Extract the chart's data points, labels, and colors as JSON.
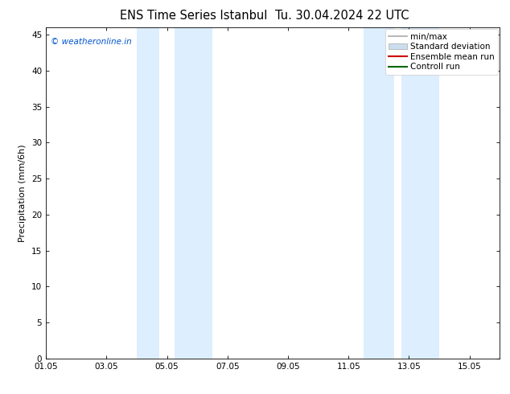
{
  "title": "ENS Time Series Istanbul",
  "title2": "Tu. 30.04.2024 22 UTC",
  "ylabel": "Precipitation (mm/6h)",
  "xtick_labels": [
    "01.05",
    "03.05",
    "05.05",
    "07.05",
    "09.05",
    "11.05",
    "13.05",
    "15.05"
  ],
  "xtick_positions": [
    0,
    2,
    4,
    6,
    8,
    10,
    12,
    14
  ],
  "ylim": [
    0,
    46
  ],
  "ytick_positions": [
    0,
    5,
    10,
    15,
    20,
    25,
    30,
    35,
    40,
    45
  ],
  "ytick_labels": [
    "0",
    "5",
    "10",
    "15",
    "20",
    "25",
    "30",
    "35",
    "40",
    "45"
  ],
  "background_color": "#ffffff",
  "plot_bg_color": "#ffffff",
  "shaded_bands": [
    {
      "x_start": 3.0,
      "x_end": 3.75
    },
    {
      "x_start": 4.25,
      "x_end": 5.5
    },
    {
      "x_start": 10.5,
      "x_end": 11.5
    },
    {
      "x_start": 11.75,
      "x_end": 13.0
    }
  ],
  "shade_color": "#ddeeff",
  "watermark_text": "© weatheronline.in",
  "watermark_color": "#0055cc",
  "legend_entries": [
    {
      "label": "min/max",
      "color": "#aaaaaa",
      "lw": 1.2,
      "type": "line"
    },
    {
      "label": "Standard deviation",
      "color": "#ccddee",
      "lw": 8,
      "type": "patch"
    },
    {
      "label": "Ensemble mean run",
      "color": "#cc0000",
      "lw": 1.5,
      "type": "line"
    },
    {
      "label": "Controll run",
      "color": "#006600",
      "lw": 1.5,
      "type": "line"
    }
  ],
  "title_fontsize": 10.5,
  "axis_label_fontsize": 8,
  "tick_fontsize": 7.5,
  "legend_fontsize": 7.5,
  "xlim": [
    0,
    15
  ]
}
